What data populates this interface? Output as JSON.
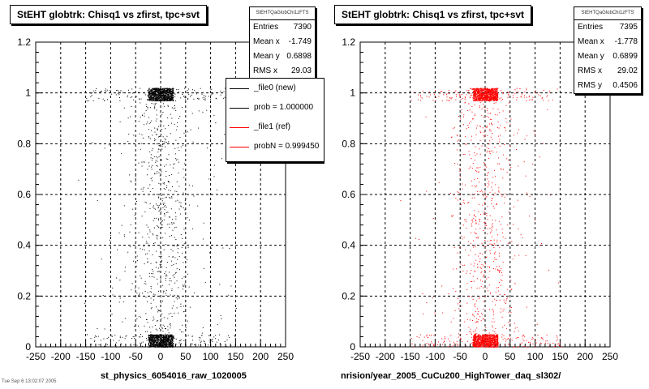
{
  "panels": [
    {
      "title": "StEHT globtrk: Chisq1 vs zfirst, tpc+svt",
      "stats": {
        "header": "StEHTQaGlobChi1zFTS",
        "rows": [
          {
            "label": "Entries",
            "value": "7390"
          },
          {
            "label": "Mean x",
            "value": "-1.749"
          },
          {
            "label": "Mean y",
            "value": "0.6898"
          },
          {
            "label": "RMS x",
            "value": "29.03"
          }
        ]
      },
      "legend": [
        {
          "label": "_file0 (new)",
          "color": "#000000"
        },
        {
          "label": "prob = 1.000000",
          "color": "#000000"
        },
        {
          "label": "_file1 (ref)",
          "color": "#ff0000"
        },
        {
          "label": "probN = 0.999450",
          "color": "#ff0000"
        }
      ],
      "footer": "st_physics_6054016_raw_1020005"
    },
    {
      "title": "StEHT globtrk: Chisq1 vs zfirst, tpc+svt",
      "stats": {
        "header": "StEHTQaGlobChi1zFTS",
        "rows": [
          {
            "label": "Entries",
            "value": "7395"
          },
          {
            "label": "Mean x",
            "value": "-1.778"
          },
          {
            "label": "Mean y",
            "value": "0.6899"
          },
          {
            "label": "RMS x",
            "value": "29.02"
          },
          {
            "label": "RMS y",
            "value": "0.4506"
          }
        ]
      },
      "footer": "nrision/year_2005_CuCu200_HighTower_daq_sl302/"
    }
  ],
  "footnote": "Tue Sep 6 13:02:07 2005",
  "chart_data": [
    {
      "type": "scatter",
      "title": "StEHT globtrk: Chisq1 vs zfirst, tpc+svt",
      "xlabel": "",
      "ylabel": "",
      "xlim": [
        -250,
        250
      ],
      "ylim": [
        0,
        1.2
      ],
      "xticks": [
        -250,
        -200,
        -150,
        -100,
        -50,
        0,
        50,
        100,
        150,
        200,
        250
      ],
      "yticks": [
        0,
        0.2,
        0.4,
        0.6,
        0.8,
        1,
        1.2
      ],
      "grid": true,
      "color": "#000000",
      "stats": {
        "entries": 7390,
        "mean_x": -1.749,
        "mean_y": 0.6898,
        "rms_x": 29.03
      },
      "clusters": [
        {
          "x_range": [
            -25,
            25
          ],
          "y_range": [
            0.97,
            1.02
          ],
          "density": "very high"
        },
        {
          "x_range": [
            -25,
            25
          ],
          "y_range": [
            0.0,
            0.05
          ],
          "density": "very high"
        },
        {
          "x_range": [
            -150,
            150
          ],
          "y_range": [
            0.0,
            1.0
          ],
          "density": "sparse"
        }
      ]
    },
    {
      "type": "scatter",
      "title": "StEHT globtrk: Chisq1 vs zfirst, tpc+svt",
      "xlabel": "",
      "ylabel": "",
      "xlim": [
        -250,
        250
      ],
      "ylim": [
        0,
        1.2
      ],
      "xticks": [
        -250,
        -200,
        -150,
        -100,
        -50,
        0,
        50,
        100,
        150,
        200,
        250
      ],
      "yticks": [
        0,
        0.2,
        0.4,
        0.6,
        0.8,
        1,
        1.2
      ],
      "grid": true,
      "color": "#ff0000",
      "stats": {
        "entries": 7395,
        "mean_x": -1.778,
        "mean_y": 0.6899,
        "rms_x": 29.02,
        "rms_y": 0.4506
      },
      "clusters": [
        {
          "x_range": [
            -25,
            25
          ],
          "y_range": [
            0.97,
            1.02
          ],
          "density": "very high"
        },
        {
          "x_range": [
            -25,
            25
          ],
          "y_range": [
            0.0,
            0.05
          ],
          "density": "very high"
        },
        {
          "x_range": [
            -150,
            150
          ],
          "y_range": [
            0.0,
            1.0
          ],
          "density": "sparse"
        }
      ]
    }
  ]
}
